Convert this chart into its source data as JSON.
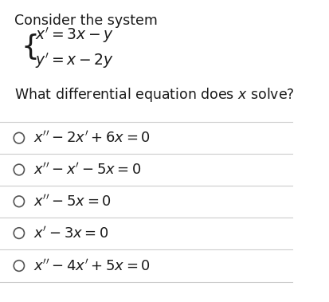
{
  "title": "Consider the system",
  "system_line1": "$x' = 3x - y$",
  "system_line2": "$y' = x - 2y$",
  "question": "What differential equation does $x$ solve?",
  "options": [
    "$x'' - 2x' + 6x = 0$",
    "$x'' - x' - 5x = 0$",
    "$x'' - 5x = 0$",
    "$x' - 3x = 0$",
    "$x'' - 4x' + 5x = 0$"
  ],
  "bg_color": "#ffffff",
  "text_color": "#1a1a1a",
  "line_color": "#cccccc",
  "circle_color": "#555555",
  "title_fontsize": 12.5,
  "question_fontsize": 12.5,
  "option_fontsize": 13,
  "system_fontsize": 13.5
}
